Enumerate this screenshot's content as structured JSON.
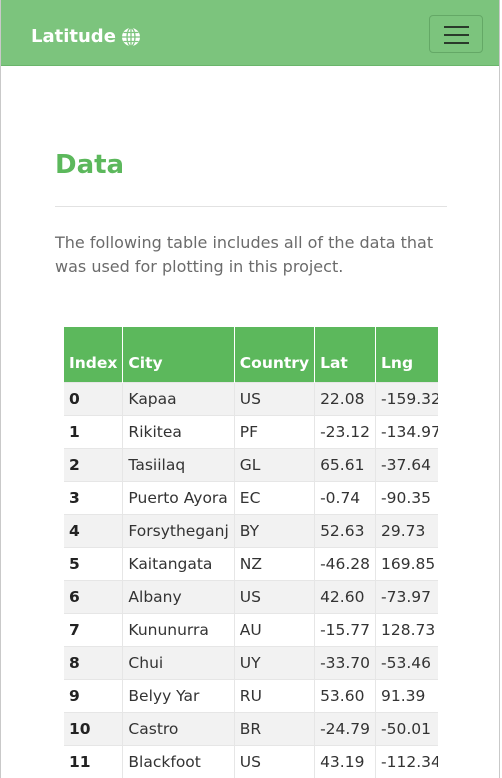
{
  "navbar": {
    "brand": "Latitude",
    "brand_icon": "globe-icon",
    "menu_icon": "hamburger-menu-icon",
    "color": "#7cc47d"
  },
  "page": {
    "title": "Data",
    "intro": "The following table includes all of the data that was used for plotting in this project.",
    "accent": "#5cb85c"
  },
  "table": {
    "columns": [
      "Index",
      "City",
      "Country",
      "Lat",
      "Lng"
    ],
    "rows": [
      [
        "0",
        "Kapaa",
        "US",
        "22.08",
        "-159.32"
      ],
      [
        "1",
        "Rikitea",
        "PF",
        "-23.12",
        "-134.97"
      ],
      [
        "2",
        "Tasiilaq",
        "GL",
        "65.61",
        "-37.64"
      ],
      [
        "3",
        "Puerto Ayora",
        "EC",
        "-0.74",
        "-90.35"
      ],
      [
        "4",
        "Forsytheganj",
        "BY",
        "52.63",
        "29.73"
      ],
      [
        "5",
        "Kaitangata",
        "NZ",
        "-46.28",
        "169.85"
      ],
      [
        "6",
        "Albany",
        "US",
        "42.60",
        "-73.97"
      ],
      [
        "7",
        "Kununurra",
        "AU",
        "-15.77",
        "128.73"
      ],
      [
        "8",
        "Chui",
        "UY",
        "-33.70",
        "-53.46"
      ],
      [
        "9",
        "Belyy Yar",
        "RU",
        "53.60",
        "91.39"
      ],
      [
        "10",
        "Castro",
        "BR",
        "-24.79",
        "-50.01"
      ],
      [
        "11",
        "Blackfoot",
        "US",
        "43.19",
        "-112.34"
      ]
    ]
  }
}
